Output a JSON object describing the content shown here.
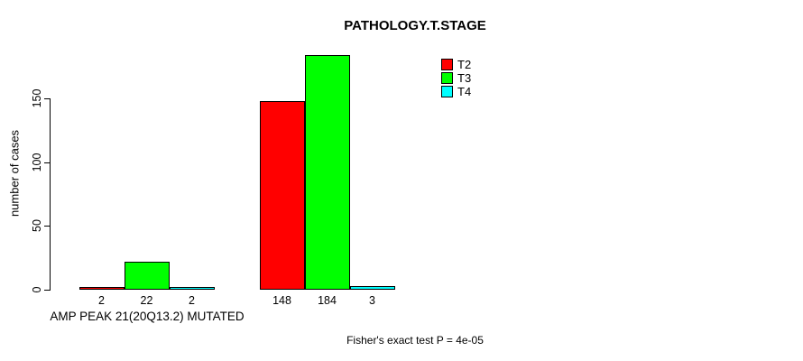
{
  "chart_data": {
    "type": "bar",
    "title": "PATHOLOGY.T.STAGE",
    "xlabel": "AMP PEAK 21(20Q13.2) MUTATED",
    "ylabel": "number of cases",
    "annotation": "Fisher's exact test P = 4e-05",
    "ylim": [
      0,
      184
    ],
    "yticks": [
      0,
      50,
      100,
      150
    ],
    "grid": false,
    "legend_position": "top-right",
    "categories": [
      "AMP PEAK 21(20Q13.2) MUTATED",
      ""
    ],
    "series": [
      {
        "name": "T2",
        "color": "#ff0000",
        "values": [
          2,
          148
        ]
      },
      {
        "name": "T3",
        "color": "#00ff00",
        "values": [
          22,
          184
        ]
      },
      {
        "name": "T4",
        "color": "#00ffff",
        "values": [
          2,
          3
        ]
      }
    ]
  }
}
